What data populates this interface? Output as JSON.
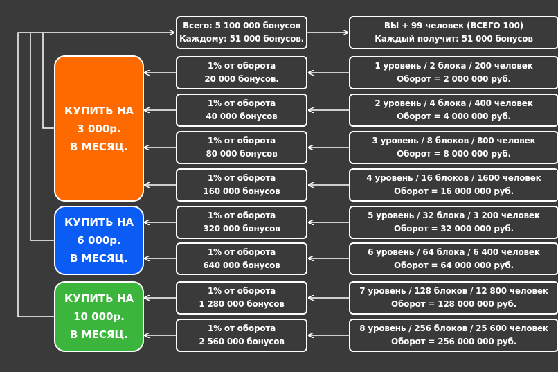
{
  "colors": {
    "background": "#3a3a3a",
    "line": "#ffffff",
    "plan_orange": "#ff6a00",
    "plan_blue": "#0a5cf5",
    "plan_green": "#3cb53c"
  },
  "plans": [
    {
      "line1": "КУПИТЬ НА",
      "line2": "3 000р.",
      "line3": "В МЕСЯЦ."
    },
    {
      "line1": "КУПИТЬ НА",
      "line2": "6 000р.",
      "line3": "В МЕСЯЦ."
    },
    {
      "line1": "КУПИТЬ НА",
      "line2": "10 000р.",
      "line3": "В МЕСЯЦ."
    }
  ],
  "summary": {
    "total": "Всего: 5 100 000 бонусов",
    "each": "Каждому: 51 000 бонусов.",
    "people": "ВЫ + 99 человек (ВСЕГО 100)",
    "each_gets": "Каждый получит: 51 000 бонусов"
  },
  "rows": [
    {
      "bonus_pct": "1% от оборота",
      "bonus": "20 000 бонусов.",
      "level": "1 уровень / 2 блока / 200 человек",
      "turnover": "Оборот = 2 000 000 руб."
    },
    {
      "bonus_pct": "1% от оборота",
      "bonus": "40 000 бонусов",
      "level": "2 уровень / 4 блока / 400 человек",
      "turnover": "Оборот = 4 000 000 руб."
    },
    {
      "bonus_pct": "1% от оборота",
      "bonus": "80 000 бонусов",
      "level": "3 уровень / 8 блоков / 800 человек",
      "turnover": "Оборот = 8 000 000 руб."
    },
    {
      "bonus_pct": "1% от оборота",
      "bonus": "160 000 бонусов",
      "level": "4 уровень / 16 блоков / 1600 человек",
      "turnover": "Оборот = 16 000 000 руб."
    },
    {
      "bonus_pct": "1% от оборота",
      "bonus": "320 000 бонусов",
      "level": "5 уровень / 32 блока / 3 200 человек",
      "turnover": "Оборот = 32 000 000 руб."
    },
    {
      "bonus_pct": "1% от оборота",
      "bonus": "640 000 бонусов",
      "level": "6 уровень / 64 блока / 6 400 человек",
      "turnover": "Оборот = 64 000 000 руб."
    },
    {
      "bonus_pct": "1% от оборота",
      "bonus": "1 280 000 бонусов",
      "level": "7 уровень / 128 блоков / 12 800 человек",
      "turnover": "Оборот = 128 000 000 руб."
    },
    {
      "bonus_pct": "1% от оборота",
      "bonus": "2 560 000 бонусов",
      "level": "8 уровень / 256 блоков / 25 600 человек",
      "turnover": "Оборот = 256 000 000 руб."
    }
  ]
}
